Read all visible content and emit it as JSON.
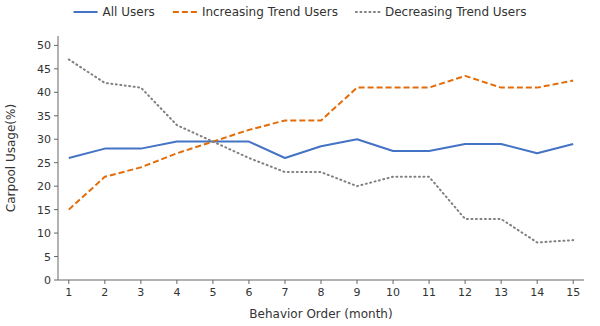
{
  "chart_data": {
    "type": "line",
    "x": [
      1,
      2,
      3,
      4,
      5,
      6,
      7,
      8,
      9,
      10,
      11,
      12,
      13,
      14,
      15
    ],
    "series": [
      {
        "name": "All Users",
        "color": "#4472C4",
        "line_style": "solid",
        "values": [
          26,
          28,
          28,
          29.5,
          29.5,
          29.5,
          26,
          28.5,
          30,
          27.5,
          27.5,
          29,
          29,
          27,
          29
        ]
      },
      {
        "name": "Increasing Trend Users",
        "color": "#E36C09",
        "line_style": "dashed",
        "values": [
          15,
          22,
          24,
          27,
          29.5,
          32,
          34,
          34,
          41,
          41,
          41,
          43.5,
          41,
          41,
          42.5
        ]
      },
      {
        "name": "Decreasing Trend Users",
        "color": "#808080",
        "line_style": "dotted",
        "values": [
          47,
          42,
          41,
          33,
          29.5,
          26,
          23,
          23,
          20,
          22,
          22,
          13,
          13,
          8,
          8.5
        ]
      }
    ],
    "xlabel": "Behavior Order (month)",
    "ylabel": "Carpool Usage(%)",
    "xlim": [
      0.7,
      15.3
    ],
    "xticks": [
      1,
      2,
      3,
      4,
      5,
      6,
      7,
      8,
      9,
      10,
      11,
      12,
      13,
      14,
      15
    ],
    "ylim": [
      0,
      52
    ],
    "yticks": [
      0,
      5,
      10,
      15,
      20,
      25,
      30,
      35,
      40,
      45,
      50
    ],
    "grid": false,
    "legend": "top"
  }
}
